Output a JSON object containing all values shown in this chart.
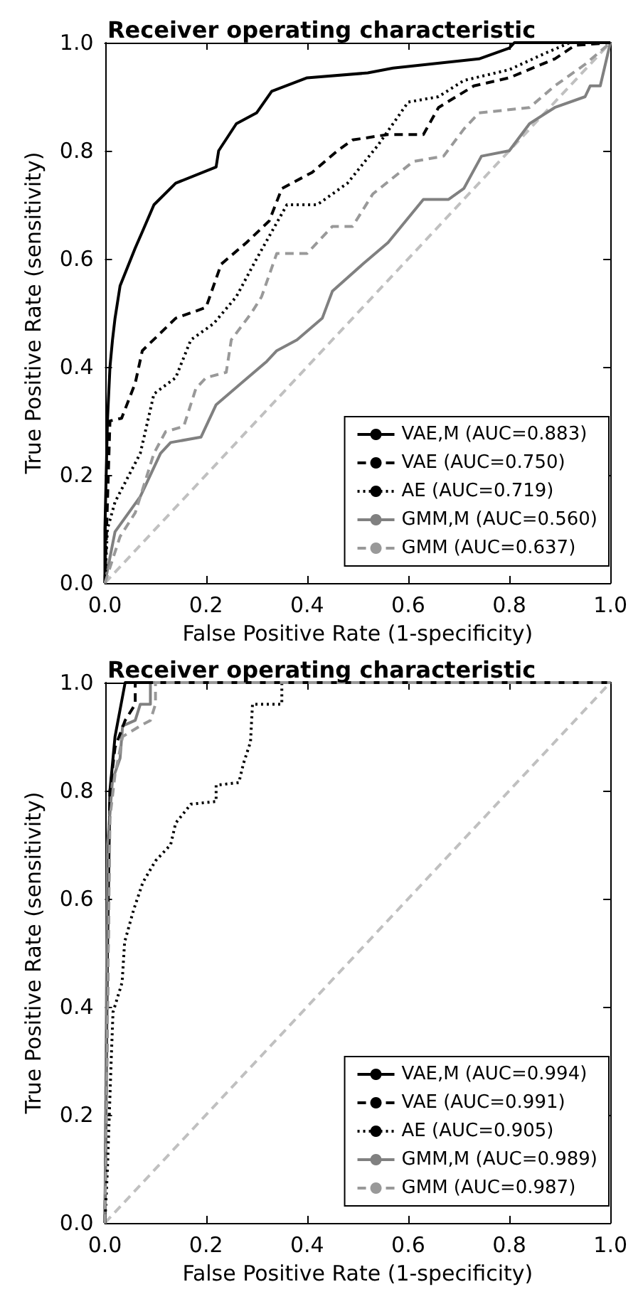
{
  "chart_data": [
    {
      "type": "line",
      "title": "Receiver operating characteristic",
      "xlabel": "False Positive Rate (1-specificity)",
      "ylabel": "True Positive Rate (sensitivity)",
      "xlim": [
        0,
        1
      ],
      "ylim": [
        0,
        1
      ],
      "xticks": [
        {
          "value": 0,
          "label": "0.0"
        },
        {
          "value": 0.2,
          "label": "0.2"
        },
        {
          "value": 0.4,
          "label": "0.4"
        },
        {
          "value": 0.6,
          "label": "0.6"
        },
        {
          "value": 0.8,
          "label": "0.8"
        },
        {
          "value": 1,
          "label": "1.0"
        }
      ],
      "yticks": [
        {
          "value": 0,
          "label": "0.0"
        },
        {
          "value": 0.2,
          "label": "0.2"
        },
        {
          "value": 0.4,
          "label": "0.4"
        },
        {
          "value": 0.6,
          "label": "0.6"
        },
        {
          "value": 0.8,
          "label": "0.8"
        },
        {
          "value": 1,
          "label": "1.0"
        }
      ],
      "grid": false,
      "legend": "bottom right",
      "marker": "none",
      "series": [
        {
          "name": "VAE,M (AUC=0.883)",
          "color": "#000000",
          "line_style": "solid",
          "x": [
            0,
            0,
            0.005,
            0.01,
            0.015,
            0.02,
            0.03,
            0.06,
            0.074,
            0.097,
            0.14,
            0.22,
            0.225,
            0.26,
            0.3,
            0.33,
            0.4,
            0.52,
            0.57,
            0.74,
            0.8,
            0.81,
            1
          ],
          "values": [
            0,
            0.1,
            0.3,
            0.4,
            0.45,
            0.49,
            0.55,
            0.62,
            0.65,
            0.7,
            0.74,
            0.77,
            0.8,
            0.85,
            0.87,
            0.91,
            0.935,
            0.944,
            0.953,
            0.97,
            0.99,
            1,
            1
          ]
        },
        {
          "name": "VAE (AUC=0.750)",
          "color": "#000000",
          "line_style": "dashed",
          "x": [
            0,
            0.01,
            0.033,
            0.06,
            0.074,
            0.14,
            0.2,
            0.23,
            0.28,
            0.325,
            0.35,
            0.41,
            0.46,
            0.49,
            0.56,
            0.63,
            0.66,
            0.73,
            0.8,
            0.89,
            0.93,
            1
          ],
          "values": [
            0,
            0.3,
            0.305,
            0.37,
            0.43,
            0.49,
            0.51,
            0.59,
            0.63,
            0.67,
            0.73,
            0.76,
            0.8,
            0.82,
            0.83,
            0.83,
            0.88,
            0.92,
            0.935,
            0.97,
            0.995,
            1
          ]
        },
        {
          "name": "AE (AUC=0.719)",
          "color": "#000000",
          "line_style": "dotted",
          "x": [
            0,
            0.005,
            0.02,
            0.07,
            0.097,
            0.14,
            0.17,
            0.215,
            0.26,
            0.3,
            0.36,
            0.42,
            0.48,
            0.54,
            0.6,
            0.66,
            0.71,
            0.8,
            0.87,
            0.92,
            1
          ],
          "values": [
            0,
            0.1,
            0.15,
            0.24,
            0.35,
            0.38,
            0.45,
            0.48,
            0.53,
            0.6,
            0.7,
            0.7,
            0.74,
            0.81,
            0.89,
            0.9,
            0.93,
            0.95,
            0.98,
            1,
            1
          ]
        },
        {
          "name": "GMM,M (AUC=0.560)",
          "color": "#808080",
          "line_style": "solid",
          "x": [
            0,
            0.02,
            0.07,
            0.11,
            0.13,
            0.19,
            0.22,
            0.27,
            0.32,
            0.34,
            0.38,
            0.43,
            0.45,
            0.51,
            0.56,
            0.63,
            0.68,
            0.71,
            0.745,
            0.8,
            0.84,
            0.89,
            0.95,
            0.96,
            0.98,
            1
          ],
          "values": [
            0,
            0.095,
            0.16,
            0.24,
            0.26,
            0.27,
            0.33,
            0.37,
            0.41,
            0.43,
            0.45,
            0.49,
            0.54,
            0.59,
            0.63,
            0.71,
            0.71,
            0.73,
            0.79,
            0.8,
            0.85,
            0.88,
            0.9,
            0.92,
            0.92,
            1
          ]
        },
        {
          "name": "GMM (AUC=0.637)",
          "color": "#999999",
          "line_style": "dashed",
          "x": [
            0,
            0.03,
            0.06,
            0.097,
            0.12,
            0.156,
            0.18,
            0.2,
            0.24,
            0.25,
            0.29,
            0.31,
            0.34,
            0.4,
            0.45,
            0.49,
            0.53,
            0.61,
            0.67,
            0.71,
            0.74,
            0.84,
            0.89,
            0.95,
            1
          ],
          "values": [
            0,
            0.086,
            0.13,
            0.24,
            0.28,
            0.29,
            0.36,
            0.38,
            0.39,
            0.45,
            0.5,
            0.53,
            0.61,
            0.61,
            0.66,
            0.66,
            0.72,
            0.78,
            0.79,
            0.84,
            0.87,
            0.88,
            0.92,
            0.96,
            1
          ]
        },
        {
          "color": "#c0c0c0",
          "line_style": "dashed",
          "x": [
            0,
            1
          ],
          "values": [
            0,
            1
          ]
        }
      ]
    },
    {
      "type": "line",
      "title": "Receiver operating characteristic",
      "xlabel": "False Positive Rate (1-specificity)",
      "ylabel": "True Positive Rate (sensitivity)",
      "xlim": [
        0,
        1
      ],
      "ylim": [
        0,
        1
      ],
      "xticks": [
        {
          "value": 0,
          "label": "0.0"
        },
        {
          "value": 0.2,
          "label": "0.2"
        },
        {
          "value": 0.4,
          "label": "0.4"
        },
        {
          "value": 0.6,
          "label": "0.6"
        },
        {
          "value": 0.8,
          "label": "0.8"
        },
        {
          "value": 1,
          "label": "1.0"
        }
      ],
      "yticks": [
        {
          "value": 0,
          "label": "0.0"
        },
        {
          "value": 0.2,
          "label": "0.2"
        },
        {
          "value": 0.4,
          "label": "0.4"
        },
        {
          "value": 0.6,
          "label": "0.6"
        },
        {
          "value": 0.8,
          "label": "0.8"
        },
        {
          "value": 1,
          "label": "1.0"
        }
      ],
      "grid": false,
      "legend": "bottom right",
      "marker": "none",
      "series": [
        {
          "name": "VAE,M (AUC=0.994)",
          "color": "#000000",
          "line_style": "solid",
          "x": [
            0,
            0.005,
            0.01,
            0.015,
            0.02,
            0.03,
            0.04,
            1
          ],
          "values": [
            0,
            0.5,
            0.8,
            0.85,
            0.9,
            0.95,
            1,
            1
          ]
        },
        {
          "name": "VAE (AUC=0.991)",
          "color": "#000000",
          "line_style": "dashed",
          "x": [
            0,
            0.01,
            0.02,
            0.04,
            0.06,
            0.06,
            1
          ],
          "values": [
            0,
            0.8,
            0.88,
            0.93,
            0.96,
            1,
            1
          ]
        },
        {
          "name": "AE (AUC=0.905)",
          "color": "#000000",
          "line_style": "dotted",
          "x": [
            0,
            0.005,
            0.012,
            0.016,
            0.034,
            0.039,
            0.057,
            0.075,
            0.1,
            0.13,
            0.14,
            0.17,
            0.22,
            0.22,
            0.265,
            0.274,
            0.288,
            0.292,
            0.35,
            0.35,
            1
          ],
          "values": [
            0,
            0.1,
            0.29,
            0.39,
            0.445,
            0.52,
            0.58,
            0.63,
            0.67,
            0.7,
            0.74,
            0.775,
            0.78,
            0.81,
            0.815,
            0.85,
            0.89,
            0.96,
            0.96,
            1,
            1
          ]
        },
        {
          "name": "GMM,M (AUC=0.989)",
          "color": "#808080",
          "line_style": "solid",
          "x": [
            0,
            0.005,
            0.015,
            0.03,
            0.035,
            0.06,
            0.07,
            0.09,
            0.09,
            1
          ],
          "values": [
            0,
            0.7,
            0.82,
            0.86,
            0.92,
            0.93,
            0.96,
            0.96,
            1,
            1
          ]
        },
        {
          "name": "GMM (AUC=0.987)",
          "color": "#999999",
          "line_style": "dashed",
          "x": [
            0,
            0.01,
            0.02,
            0.035,
            0.07,
            0.09,
            0.1,
            0.1,
            1
          ],
          "values": [
            0,
            0.75,
            0.83,
            0.9,
            0.92,
            0.93,
            0.96,
            1,
            1
          ]
        },
        {
          "color": "#c0c0c0",
          "line_style": "dashed",
          "x": [
            0,
            1
          ],
          "values": [
            0,
            1
          ]
        }
      ]
    }
  ]
}
